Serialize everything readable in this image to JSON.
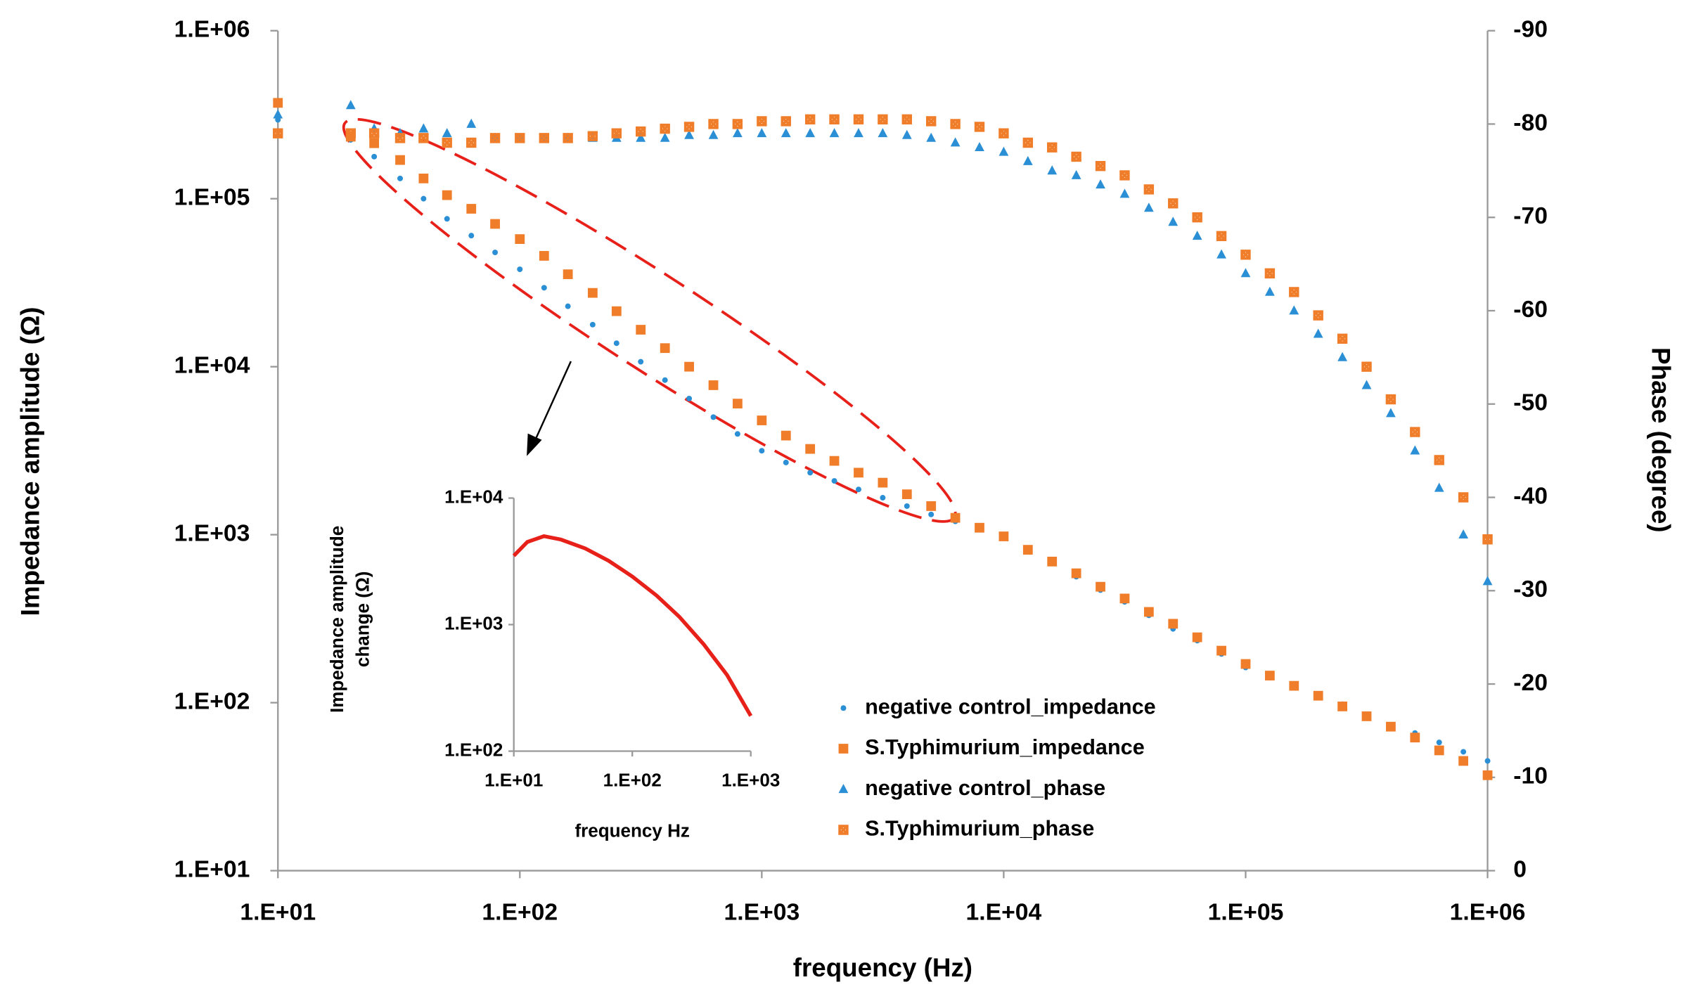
{
  "chart_data": [
    {
      "type": "scatter",
      "xlabel": "frequency (Hz)",
      "ylabel": "Impedance amplitude (Ω)",
      "y2label": "Phase (degree)",
      "xscale": "log",
      "yscale": "log",
      "xlim": [
        10,
        1000000
      ],
      "ylim": [
        10,
        1000000
      ],
      "y2lim": [
        0,
        -90
      ],
      "xticks": [
        {
          "value": 10,
          "label": "1.E+01"
        },
        {
          "value": 100,
          "label": "1.E+02"
        },
        {
          "value": 1000,
          "label": "1.E+03"
        },
        {
          "value": 10000,
          "label": "1.E+04"
        },
        {
          "value": 100000,
          "label": "1.E+05"
        },
        {
          "value": 1000000,
          "label": "1.E+06"
        }
      ],
      "yticks": [
        {
          "value": 10,
          "label": "1.E+01"
        },
        {
          "value": 100,
          "label": "1.E+02"
        },
        {
          "value": 1000,
          "label": "1.E+03"
        },
        {
          "value": 10000,
          "label": "1.E+04"
        },
        {
          "value": 100000,
          "label": "1.E+05"
        },
        {
          "value": 1000000,
          "label": "1.E+06"
        }
      ],
      "y2ticks": [
        0,
        -10,
        -20,
        -30,
        -40,
        -50,
        -60,
        -70,
        -80,
        -90
      ],
      "legend": "lower right",
      "x": [
        10,
        20,
        25,
        32,
        40,
        50,
        63,
        79,
        100,
        126,
        158,
        200,
        251,
        316,
        398,
        501,
        631,
        794,
        1000,
        1259,
        1585,
        1995,
        2512,
        3162,
        3981,
        5012,
        6310,
        7943,
        10000,
        12589,
        15849,
        19953,
        25119,
        31623,
        39811,
        50119,
        63096,
        79433,
        100000,
        125893,
        158489,
        199526,
        251189,
        316228,
        398107,
        501187,
        630957,
        794328,
        1000000
      ],
      "series": [
        {
          "name": "negative control_impedance",
          "color": "#2b8fd6",
          "marker": "circle",
          "axis": "y",
          "values": [
            295000,
            224000,
            178000,
            132000,
            100000,
            75900,
            60300,
            47900,
            38000,
            29500,
            22900,
            17800,
            13800,
            10700,
            8320,
            6460,
            5010,
            3980,
            3160,
            2690,
            2340,
            2090,
            1860,
            1660,
            1480,
            1320,
            1200,
            1070,
            955,
            794,
            676,
            562,
            468,
            398,
            331,
            275,
            234,
            195,
            162,
            141,
            126,
            110,
            98,
            85,
            74,
            66,
            58,
            51,
            45
          ]
        },
        {
          "name": "S.Typhimurium_impedance",
          "color": "#f07d2a",
          "marker": "square",
          "axis": "y",
          "values": [
            372000,
            234000,
            214000,
            170000,
            132000,
            105000,
            87100,
            70800,
            57500,
            45700,
            35500,
            27500,
            21400,
            16600,
            12900,
            10000,
            7760,
            6030,
            4790,
            3890,
            3240,
            2750,
            2340,
            2040,
            1740,
            1480,
            1260,
            1100,
            977,
            813,
            692,
            589,
            490,
            417,
            347,
            295,
            245,
            204,
            170,
            145,
            126,
            110,
            95,
            83,
            72,
            62,
            52,
            45,
            37
          ]
        },
        {
          "name": "negative control_phase",
          "color": "#2b8fd6",
          "marker": "triangle",
          "axis": "y2",
          "values": [
            -81,
            -82,
            -79.5,
            -79,
            -79.5,
            -79,
            -80,
            -78.5,
            -78.5,
            -78.5,
            -78.5,
            -78.5,
            -78.5,
            -78.5,
            -78.5,
            -78.8,
            -78.8,
            -79,
            -79,
            -79,
            -79,
            -79,
            -79,
            -79,
            -78.8,
            -78.5,
            -78,
            -77.5,
            -77,
            -76,
            -75,
            -74.5,
            -73.5,
            -72.5,
            -71,
            -69.5,
            -68,
            -66,
            -64,
            -62,
            -60,
            -57.5,
            -55,
            -52,
            -49,
            -45,
            -41,
            -36,
            -31
          ]
        },
        {
          "name": "S.Typhimurium_phase",
          "color": "#f07d2a",
          "marker": "cross-square",
          "axis": "y2",
          "values": [
            -79,
            -79,
            -79,
            -78.5,
            -78.5,
            -78,
            -78,
            -78.5,
            -78.5,
            -78.5,
            -78.5,
            -78.7,
            -79,
            -79.2,
            -79.5,
            -79.7,
            -80,
            -80,
            -80.3,
            -80.3,
            -80.5,
            -80.5,
            -80.5,
            -80.5,
            -80.5,
            -80.3,
            -80,
            -79.7,
            -79,
            -78,
            -77.5,
            -76.5,
            -75.5,
            -74.5,
            -73,
            -71.5,
            -70,
            -68,
            -66,
            -64,
            -62,
            -59.5,
            -57,
            -54,
            -50.5,
            -47,
            -44,
            -40,
            -35.5
          ]
        }
      ]
    },
    {
      "type": "line",
      "xlabel": "frequency Hz",
      "ylabel": [
        "Impedance amplitude",
        "change (Ω)"
      ],
      "xscale": "log",
      "yscale": "log",
      "xlim": [
        10,
        1000
      ],
      "ylim": [
        100,
        10000
      ],
      "xticks": [
        {
          "value": 10,
          "label": "1.E+01"
        },
        {
          "value": 100,
          "label": "1.E+02"
        },
        {
          "value": 1000,
          "label": "1.E+03"
        }
      ],
      "yticks": [
        {
          "value": 100,
          "label": "1.E+02"
        },
        {
          "value": 1000,
          "label": "1.E+03"
        },
        {
          "value": 10000,
          "label": "1.E+04"
        }
      ],
      "x": [
        10,
        13,
        18,
        25,
        40,
        63,
        100,
        160,
        250,
        400,
        630,
        1000
      ],
      "series": [
        {
          "color": "#e8201a",
          "values": [
            3500,
            4500,
            5000,
            4700,
            4000,
            3200,
            2400,
            1700,
            1150,
            700,
            400,
            190
          ]
        }
      ]
    }
  ]
}
